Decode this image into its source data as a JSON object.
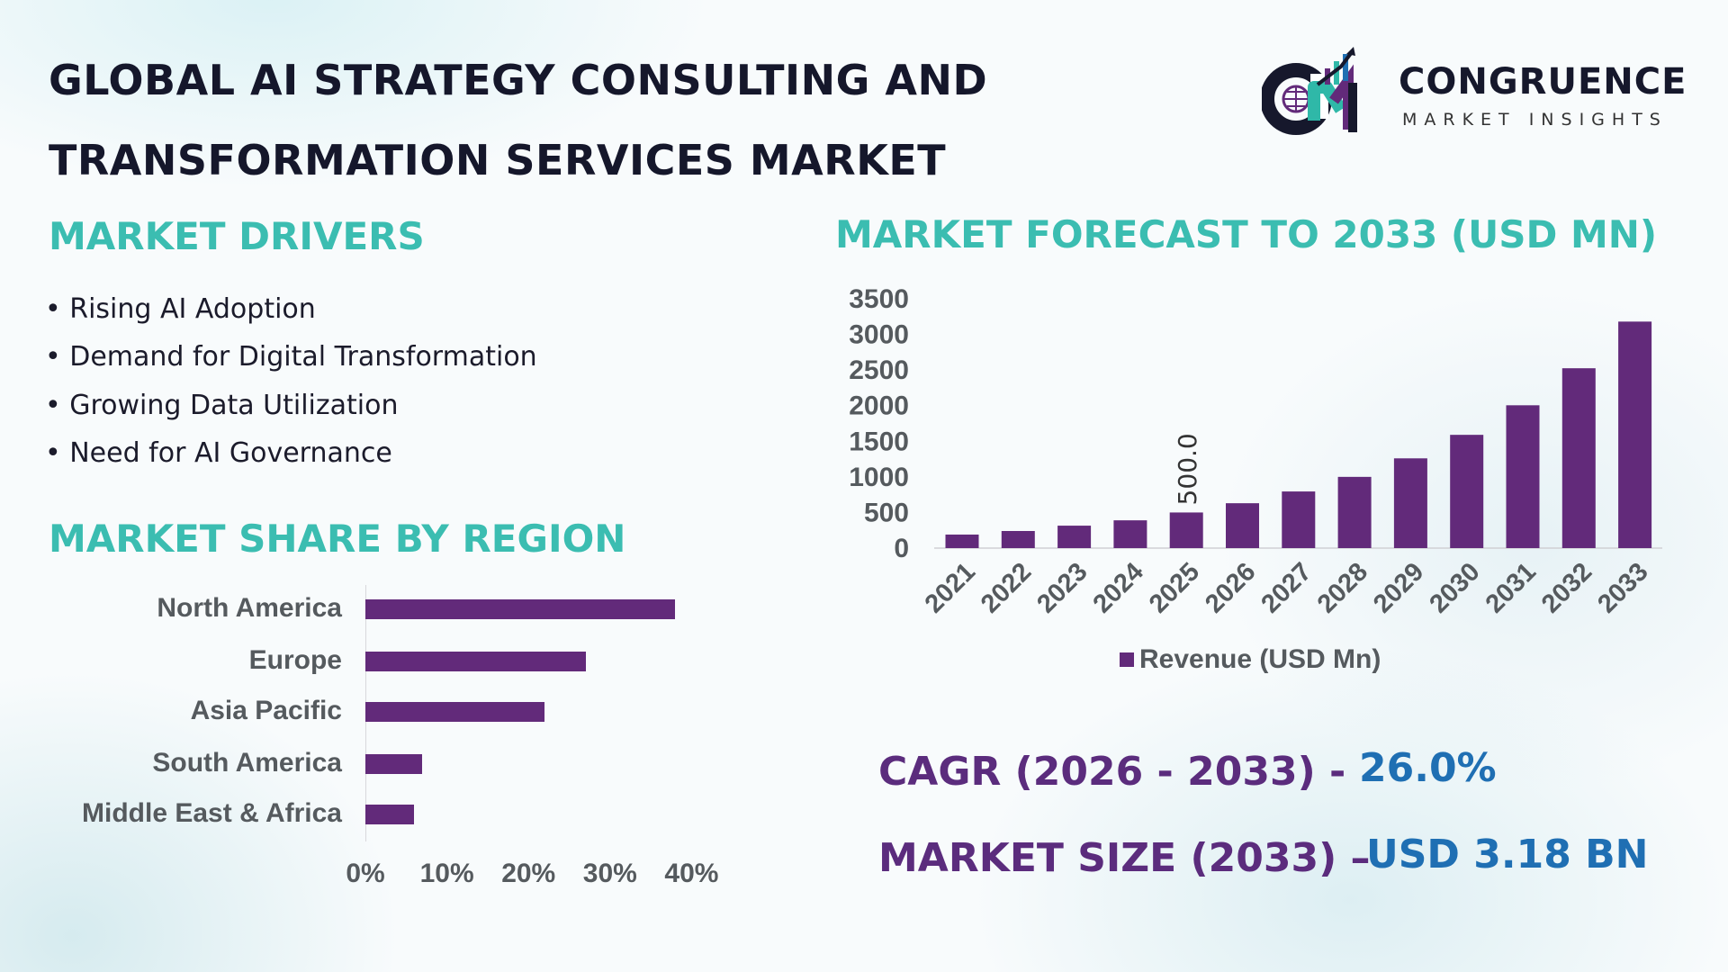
{
  "header": {
    "title_line1": "GLOBAL AI STRATEGY CONSULTING AND",
    "title_line2": "TRANSFORMATION SERVICES MARKET"
  },
  "logo": {
    "name": "CONGRUENCE",
    "tagline": "MARKET INSIGHTS",
    "monogram": "CM"
  },
  "drivers": {
    "heading": "MARKET DRIVERS",
    "items": [
      "Rising AI Adoption",
      "Demand for Digital Transformation",
      "Growing Data Utilization",
      "Need for AI Governance"
    ]
  },
  "kpis": {
    "cagr_label": "CAGR (2026 - 2033) -",
    "cagr_value": "26.0%",
    "size_label": "MARKET SIZE (2033) –",
    "size_value": "USD 3.18 BN"
  },
  "colors": {
    "bar": "#622a7a",
    "teal": "#3bbdb1",
    "kpi_label": "#5b2c7d",
    "kpi_value": "#1f6fb3"
  },
  "chart_data": [
    {
      "type": "bar",
      "orientation": "horizontal",
      "title": "MARKET SHARE BY REGION",
      "categories": [
        "North America",
        "Europe",
        "Asia Pacific",
        "South America",
        "Middle East & Africa"
      ],
      "values": [
        38,
        27,
        22,
        7,
        6
      ],
      "unit": "%",
      "xlim": [
        0,
        40
      ],
      "xticks": [
        "0%",
        "10%",
        "20%",
        "30%",
        "40%"
      ],
      "grid": false
    },
    {
      "type": "bar",
      "title": "MARKET FORECAST TO 2033 (USD MN)",
      "categories": [
        "2021",
        "2022",
        "2023",
        "2024",
        "2025",
        "2026",
        "2027",
        "2028",
        "2029",
        "2030",
        "2031",
        "2032",
        "2033"
      ],
      "series": [
        {
          "name": "Revenue (USD Mn)",
          "values": [
            190,
            240,
            315,
            390,
            500,
            630,
            795,
            1000,
            1260,
            1590,
            2005,
            2525,
            3180
          ]
        }
      ],
      "data_labels": [
        {
          "category": "2025",
          "text": "500.0"
        }
      ],
      "ylim": [
        0,
        3500
      ],
      "yticks": [
        "0",
        "500",
        "1000",
        "1500",
        "2000",
        "2500",
        "3000",
        "3500"
      ],
      "legend": "bottom",
      "grid": false
    }
  ]
}
